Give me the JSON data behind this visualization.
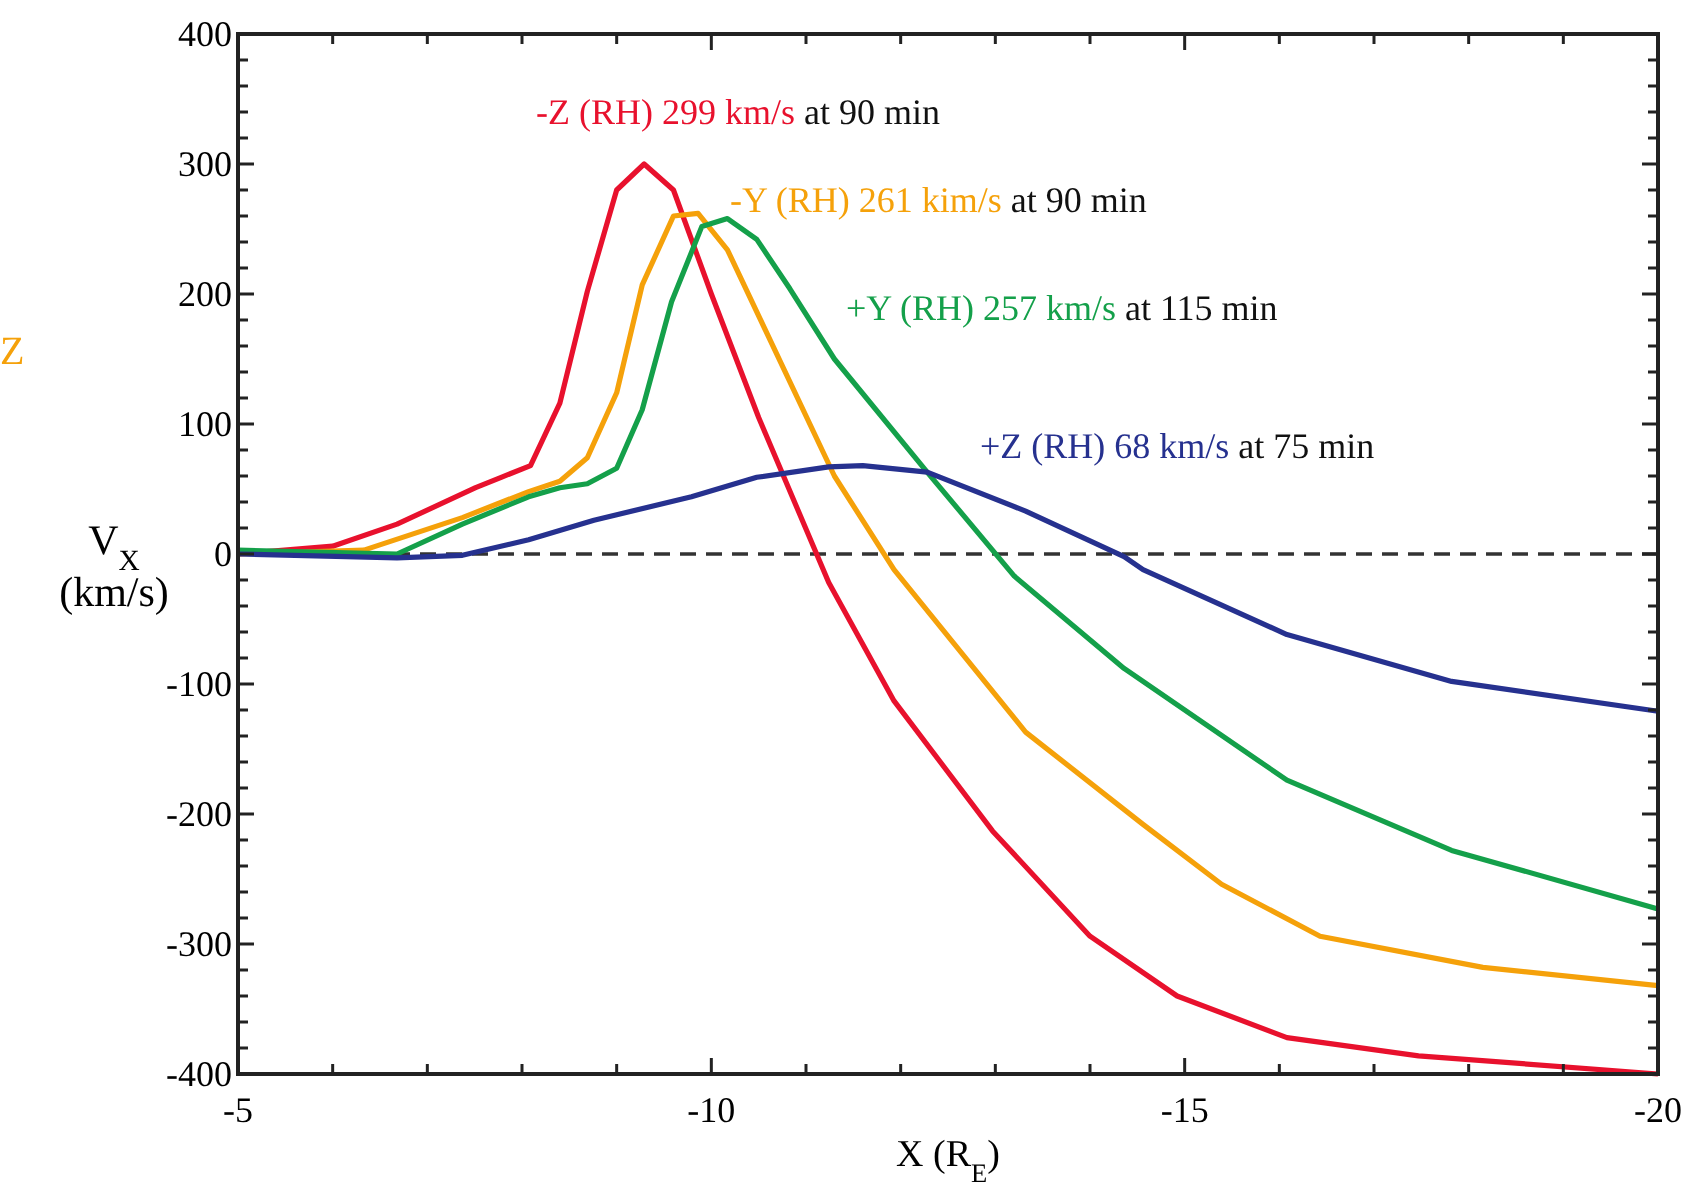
{
  "chart_data": {
    "type": "line",
    "xlabel": "X (R$_{E}$)",
    "ylabel": "V$_{X}$ (km/s)",
    "xlim": [
      -5,
      -20
    ],
    "ylim": [
      -400,
      400
    ],
    "xticks": [
      -5,
      {
        "value": -6,
        "label": null
      },
      {
        "value": -7,
        "label": null
      },
      {
        "value": -8,
        "label": null
      },
      {
        "value": -9,
        "label": null
      },
      -10,
      {
        "value": -11,
        "label": null
      },
      {
        "value": -12,
        "label": null
      },
      {
        "value": -13,
        "label": null
      },
      {
        "value": -14,
        "label": null
      },
      -15,
      {
        "value": -16,
        "label": null
      },
      {
        "value": -17,
        "label": null
      },
      {
        "value": -18,
        "label": null
      },
      {
        "value": -19,
        "label": null
      },
      -20
    ],
    "yticks": [
      -400,
      {
        "value": -380,
        "label": null
      },
      {
        "value": -360,
        "label": null
      },
      {
        "value": -340,
        "label": null
      },
      {
        "value": -320,
        "label": null
      },
      -300,
      {
        "value": -280,
        "label": null
      },
      {
        "value": -260,
        "label": null
      },
      {
        "value": -240,
        "label": null
      },
      {
        "value": -220,
        "label": null
      },
      -200,
      {
        "value": -180,
        "label": null
      },
      {
        "value": -160,
        "label": null
      },
      {
        "value": -140,
        "label": null
      },
      {
        "value": -120,
        "label": null
      },
      -100,
      {
        "value": -80,
        "label": null
      },
      {
        "value": -60,
        "label": null
      },
      {
        "value": -40,
        "label": null
      },
      {
        "value": -20,
        "label": null
      },
      0,
      {
        "value": 20,
        "label": null
      },
      {
        "value": 40,
        "label": null
      },
      {
        "value": 60,
        "label": null
      },
      {
        "value": 80,
        "label": null
      },
      100,
      {
        "value": 120,
        "label": null
      },
      {
        "value": 140,
        "label": null
      },
      {
        "value": 160,
        "label": null
      },
      {
        "value": 180,
        "label": null
      },
      200,
      {
        "value": 220,
        "label": null
      },
      {
        "value": 240,
        "label": null
      },
      {
        "value": 260,
        "label": null
      },
      {
        "value": 280,
        "label": null
      },
      300,
      {
        "value": 320,
        "label": null
      },
      {
        "value": 340,
        "label": null
      },
      {
        "value": 360,
        "label": null
      },
      {
        "value": 380,
        "label": null
      },
      400
    ],
    "line_style": "solid",
    "ref_lines": [
      {
        "axis": "y",
        "value": 0,
        "color": "#333333",
        "line_style": "dashed"
      }
    ],
    "series": [
      {
        "name": "-Z (RH) 299 km/s",
        "color": "#e8112d",
        "x": [
          -5,
          -6.0,
          -6.68,
          -7.51,
          -7.78,
          -8.09,
          -8.4,
          -8.69,
          -9.0,
          -9.29,
          -9.6,
          -10.0,
          -10.5,
          -11.24,
          -11.93,
          -12.97,
          -14.0,
          -14.92,
          -16.08,
          -17.47,
          -20
        ],
        "values": [
          0,
          6,
          23,
          51,
          59,
          68,
          116,
          202,
          280,
          300,
          280,
          200,
          105,
          -22,
          -113,
          -213,
          -294,
          -340,
          -372,
          -386,
          -400
        ]
      },
      {
        "name": "-Y (RH) 261 kim/s",
        "color": "#f5a10a",
        "x": [
          -5,
          -6.33,
          -7.37,
          -8.07,
          -8.4,
          -8.69,
          -9.0,
          -9.27,
          -9.6,
          -9.86,
          -10.17,
          -11.3,
          -11.93,
          -13.32,
          -14.56,
          -15.39,
          -16.43,
          -18.15,
          -20
        ],
        "values": [
          0,
          3,
          28,
          48,
          56,
          74,
          124,
          207,
          260,
          262,
          234,
          60,
          -12,
          -137,
          -208,
          -254,
          -294,
          -318,
          -332
        ]
      },
      {
        "name": "+Y (RH) 257 km/s",
        "color": "#14a04a",
        "x": [
          -5,
          -6.68,
          -7.37,
          -8.07,
          -8.4,
          -8.69,
          -9.0,
          -9.27,
          -9.58,
          -9.9,
          -10.17,
          -10.48,
          -10.83,
          -11.3,
          -12.28,
          -13.2,
          -14.36,
          -16.08,
          -17.82,
          -20
        ],
        "values": [
          3,
          0,
          23,
          44,
          51,
          54,
          66,
          111,
          194,
          252,
          258,
          242,
          204,
          150,
          63,
          -17,
          -88,
          -174,
          -228,
          -273
        ]
      },
      {
        "name": "+Z (RH) 68 km/s",
        "color": "#26318f",
        "x": [
          -5,
          -6.68,
          -7.37,
          -8.07,
          -8.76,
          -9.79,
          -10.48,
          -11.24,
          -11.6,
          -12.28,
          -13.32,
          -14.36,
          -14.56,
          -16.08,
          -17.82,
          -20
        ],
        "values": [
          0,
          -3,
          -1,
          11,
          26,
          44,
          59,
          67,
          68,
          63,
          33,
          -2,
          -12,
          -62,
          -98,
          -121
        ]
      }
    ],
    "annotations": [
      "at 90 min",
      "at 90 min",
      "at 115 min",
      "at 75 min",
      "Z"
    ]
  }
}
